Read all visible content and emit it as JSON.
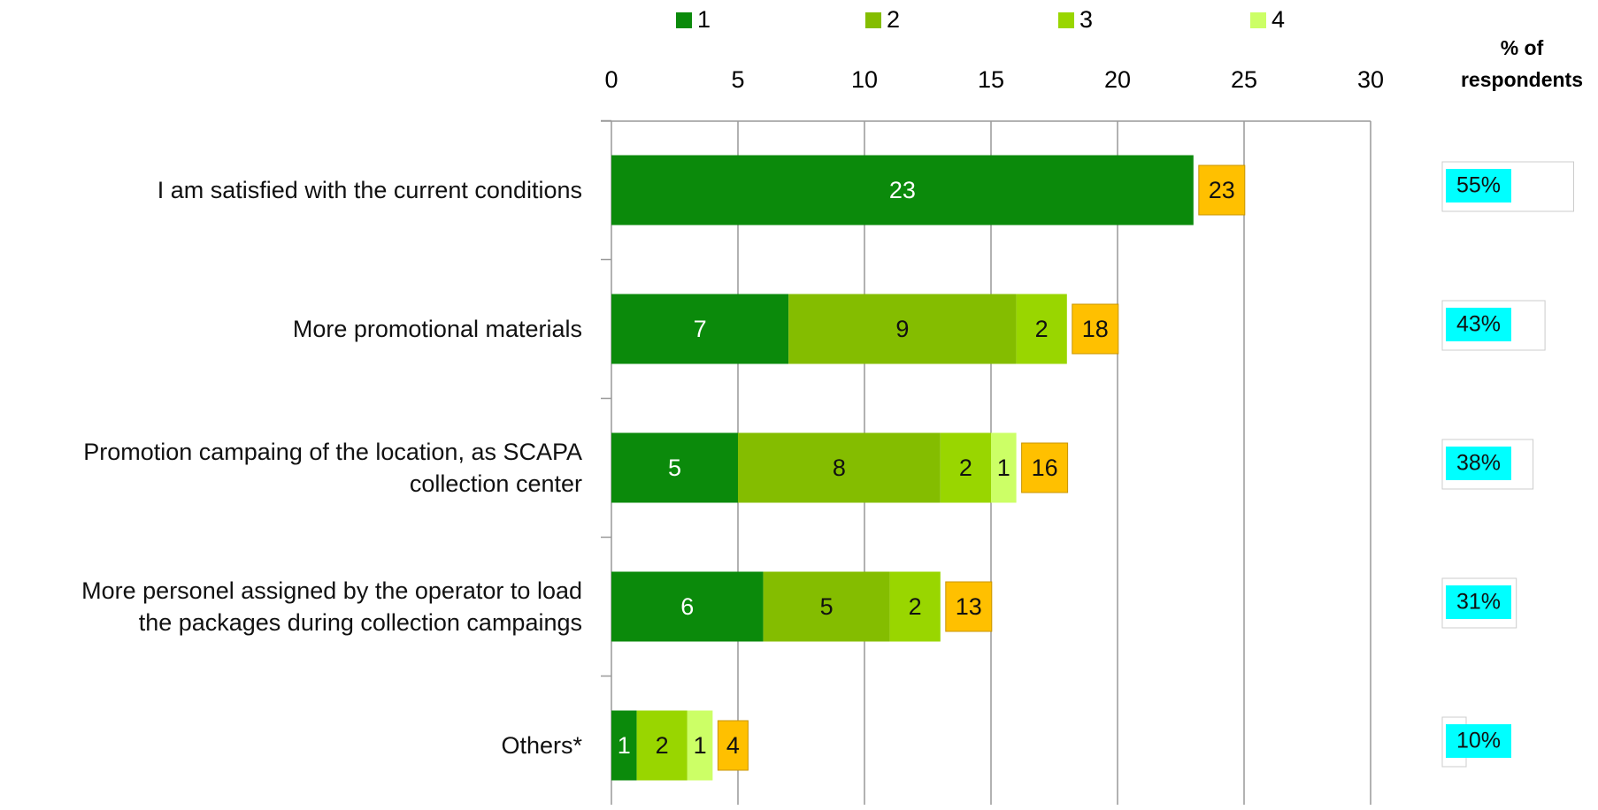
{
  "chart_data": {
    "type": "bar",
    "orientation": "horizontal",
    "stacked": true,
    "categories": [
      "I am satisfied with the current conditions",
      "More promotional materials",
      "Promotion campaing of the location, as SCAPA\ncollection center",
      "More personel assigned by the operator to load\nthe packages during collection campaings",
      "Others*"
    ],
    "series": [
      {
        "name": "1",
        "color": "#0b8a0b",
        "values": [
          23,
          7,
          5,
          6,
          1
        ]
      },
      {
        "name": "2",
        "color": "#84bd00",
        "values": [
          null,
          9,
          8,
          5,
          null
        ]
      },
      {
        "name": "3",
        "color": "#99d600",
        "values": [
          null,
          2,
          2,
          2,
          2
        ]
      },
      {
        "name": "4",
        "color": "#ccff66",
        "values": [
          null,
          null,
          1,
          null,
          1
        ]
      }
    ],
    "totals": [
      23,
      18,
      16,
      13,
      4
    ],
    "totals_color": "#ffc000",
    "xlim": [
      0,
      30
    ],
    "xticks": [
      0,
      5,
      10,
      15,
      20,
      25,
      30
    ],
    "grid": true,
    "legend": "top",
    "respondents": {
      "title": "% of\nrespondents",
      "values": [
        55,
        43,
        38,
        31,
        10
      ],
      "value_labels": [
        "55%",
        "43%",
        "38%",
        "31%",
        "10%"
      ],
      "color": "#00ffff"
    }
  }
}
